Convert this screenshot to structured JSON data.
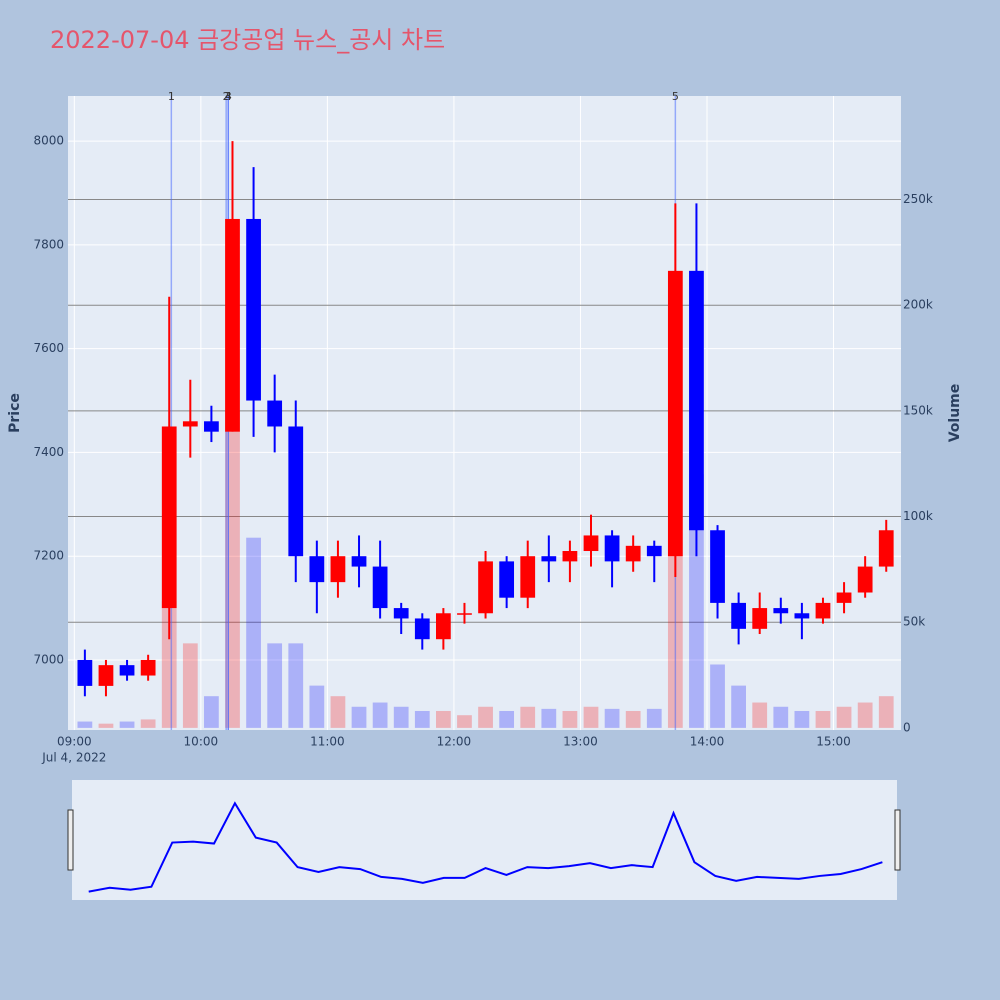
{
  "chart_data": {
    "type": "candlestick",
    "title": "2022-07-04 금강공업 뉴스_공시 차트",
    "x": [
      "09:00",
      "09:10",
      "09:20",
      "09:30",
      "09:40",
      "09:50",
      "10:00",
      "10:10",
      "10:20",
      "10:30",
      "10:40",
      "10:50",
      "11:00",
      "11:10",
      "11:20",
      "11:30",
      "11:40",
      "11:50",
      "12:00",
      "12:10",
      "12:20",
      "12:30",
      "12:40",
      "12:50",
      "13:00",
      "13:10",
      "13:20",
      "13:30",
      "13:40",
      "13:50",
      "14:00",
      "14:10",
      "14:20",
      "14:30",
      "14:40",
      "14:50",
      "15:00",
      "15:10",
      "15:20"
    ],
    "open": [
      7000,
      6950,
      6990,
      6970,
      7100,
      7450,
      7460,
      7440,
      7850,
      7500,
      7450,
      7200,
      7150,
      7200,
      7180,
      7100,
      7080,
      7040,
      7090,
      7090,
      7190,
      7120,
      7200,
      7190,
      7210,
      7240,
      7190,
      7220,
      7200,
      7750,
      7250,
      7110,
      7060,
      7100,
      7090,
      7080,
      7110,
      7130,
      7180
    ],
    "high": [
      7020,
      7000,
      7000,
      7010,
      7700,
      7540,
      7490,
      8000,
      7950,
      7550,
      7500,
      7230,
      7230,
      7240,
      7230,
      7110,
      7090,
      7100,
      7110,
      7210,
      7200,
      7230,
      7240,
      7230,
      7280,
      7250,
      7240,
      7230,
      7880,
      7880,
      7260,
      7130,
      7130,
      7120,
      7110,
      7120,
      7150,
      7200,
      7270
    ],
    "low": [
      6930,
      6930,
      6960,
      6960,
      7040,
      7390,
      7420,
      7440,
      7430,
      7400,
      7150,
      7090,
      7120,
      7140,
      7080,
      7050,
      7020,
      7020,
      7070,
      7080,
      7100,
      7100,
      7150,
      7150,
      7180,
      7140,
      7170,
      7150,
      7160,
      7200,
      7080,
      7030,
      7050,
      7070,
      7040,
      7070,
      7090,
      7120,
      7170
    ],
    "close": [
      6950,
      6990,
      6970,
      7000,
      7450,
      7460,
      7440,
      7850,
      7500,
      7450,
      7200,
      7150,
      7200,
      7180,
      7100,
      7080,
      7040,
      7090,
      7090,
      7190,
      7120,
      7200,
      7190,
      7210,
      7240,
      7190,
      7220,
      7200,
      7750,
      7250,
      7110,
      7060,
      7100,
      7090,
      7080,
      7110,
      7130,
      7180,
      7250
    ],
    "volume": [
      3000,
      2000,
      3000,
      4000,
      60000,
      40000,
      15000,
      150000,
      90000,
      40000,
      40000,
      20000,
      15000,
      10000,
      12000,
      10000,
      8000,
      8000,
      6000,
      10000,
      8000,
      10000,
      9000,
      8000,
      10000,
      9000,
      8000,
      9000,
      200000,
      120000,
      30000,
      20000,
      12000,
      10000,
      8000,
      8000,
      10000,
      12000,
      15000
    ],
    "increasing_color": "#ff0000",
    "decreasing_color": "#0000ff",
    "xlim": [
      "08:57",
      "15:32"
    ],
    "xticks": [
      "09:00",
      "10:00",
      "11:00",
      "12:00",
      "13:00",
      "14:00",
      "15:00"
    ],
    "x_date_label": "Jul 4, 2022",
    "ylim": [
      6865,
      8087
    ],
    "yticks": [
      7000,
      7200,
      7400,
      7600,
      7800,
      8000
    ],
    "y2lim": [
      -1000,
      299000
    ],
    "y2ticks": [
      0,
      {
        "value": 50000,
        "label": "50k"
      },
      {
        "value": 100000,
        "label": "100k"
      },
      {
        "value": 150000,
        "label": "150k"
      },
      {
        "value": 200000,
        "label": "200k"
      },
      {
        "value": 250000,
        "label": "250k"
      }
    ],
    "y_label": "Price",
    "y2_label": "Volume",
    "markers": [
      {
        "x": "09:46",
        "label": "1"
      },
      {
        "x": "10:12",
        "label": "2"
      },
      {
        "x": "10:13",
        "label": "3"
      },
      {
        "x": "10:13",
        "label": "4"
      },
      {
        "x": "13:45",
        "label": "5"
      }
    ],
    "grid": true
  }
}
